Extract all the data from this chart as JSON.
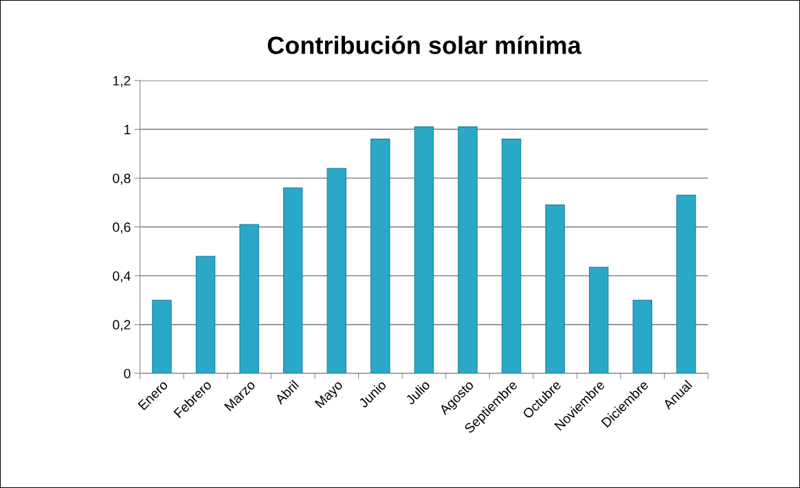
{
  "chart_data": {
    "type": "bar",
    "title": "Contribución solar mínima",
    "categories": [
      "Enero",
      "Febrero",
      "Marzo",
      "Abril",
      "Mayo",
      "Junio",
      "Julio",
      "Agosto",
      "Septiembre",
      "Octubre",
      "Noviembre",
      "Diciembre",
      "Anual"
    ],
    "values": [
      0.3,
      0.48,
      0.61,
      0.76,
      0.84,
      0.96,
      1.01,
      1.01,
      0.96,
      0.69,
      0.435,
      0.3,
      0.73
    ],
    "color": "#2aa8c8",
    "ylim": [
      0,
      1.2
    ],
    "yticks": [
      {
        "value": 0,
        "label": "0"
      },
      {
        "value": 0.2,
        "label": "0,2"
      },
      {
        "value": 0.4,
        "label": "0,4"
      },
      {
        "value": 0.6,
        "label": "0,6"
      },
      {
        "value": 0.8,
        "label": "0,8"
      },
      {
        "value": 1,
        "label": "1"
      },
      {
        "value": 1.2,
        "label": "1,2"
      }
    ],
    "grid": "y"
  }
}
